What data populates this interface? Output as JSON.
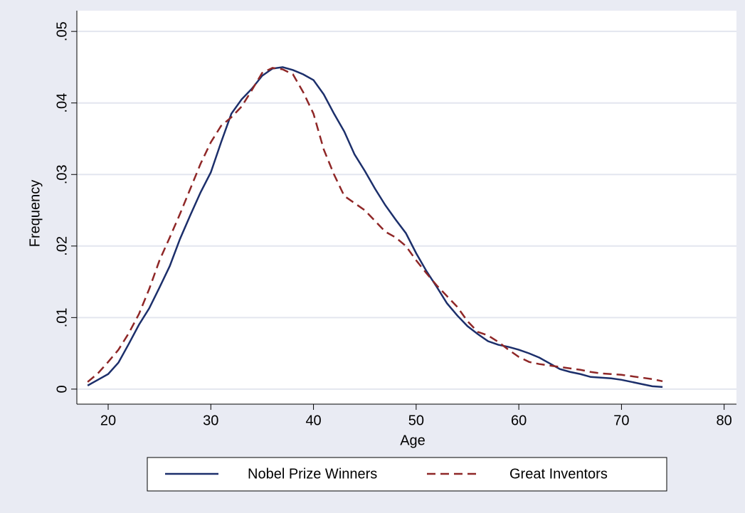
{
  "chart_data": {
    "type": "line",
    "x_label": "Age",
    "y_label": "Frequency",
    "x": [
      18,
      19,
      20,
      21,
      22,
      23,
      24,
      25,
      26,
      27,
      28,
      29,
      30,
      31,
      32,
      33,
      34,
      35,
      36,
      37,
      38,
      39,
      40,
      41,
      42,
      43,
      44,
      45,
      46,
      47,
      48,
      49,
      50,
      51,
      52,
      53,
      54,
      55,
      56,
      57,
      58,
      59,
      60,
      61,
      62,
      63,
      64,
      65,
      66,
      67,
      68,
      69,
      70,
      71,
      72,
      73,
      74
    ],
    "series": [
      {
        "name": "Nobel Prize Winners",
        "color": "#1c2f6b",
        "dash": "solid",
        "values": [
          0.0005,
          0.0013,
          0.0021,
          0.0037,
          0.0063,
          0.009,
          0.0113,
          0.0142,
          0.0172,
          0.021,
          0.0243,
          0.0275,
          0.0303,
          0.0345,
          0.0385,
          0.0405,
          0.042,
          0.0438,
          0.0448,
          0.045,
          0.0446,
          0.044,
          0.0432,
          0.0412,
          0.0385,
          0.036,
          0.0328,
          0.0305,
          0.028,
          0.0257,
          0.0237,
          0.0218,
          0.019,
          0.0165,
          0.0143,
          0.012,
          0.0103,
          0.0088,
          0.0077,
          0.0067,
          0.0062,
          0.0059,
          0.0055,
          0.005,
          0.0044,
          0.0036,
          0.0028,
          0.0024,
          0.0021,
          0.0017,
          0.0016,
          0.0015,
          0.0013,
          0.001,
          0.0007,
          0.0004,
          0.0003
        ]
      },
      {
        "name": "Great Inventors",
        "color": "#8f2727",
        "dash": "dashed",
        "values": [
          0.001,
          0.0022,
          0.0038,
          0.0055,
          0.0078,
          0.0105,
          0.014,
          0.018,
          0.0212,
          0.0245,
          0.028,
          0.0315,
          0.0345,
          0.0368,
          0.038,
          0.0395,
          0.0418,
          0.0442,
          0.0449,
          0.0447,
          0.044,
          0.0415,
          0.0385,
          0.0335,
          0.03,
          0.027,
          0.026,
          0.025,
          0.0235,
          0.022,
          0.0212,
          0.02,
          0.018,
          0.0162,
          0.0145,
          0.013,
          0.0115,
          0.0095,
          0.008,
          0.0075,
          0.0066,
          0.0055,
          0.0045,
          0.0038,
          0.0035,
          0.0033,
          0.0031,
          0.0029,
          0.0027,
          0.0024,
          0.0022,
          0.0021,
          0.002,
          0.0018,
          0.0016,
          0.0014,
          0.0011
        ]
      }
    ],
    "xlim": [
      16.95,
      81.2
    ],
    "xticks": [
      20,
      30,
      40,
      50,
      60,
      70,
      80
    ],
    "ylim": [
      -0.0021,
      0.0529
    ],
    "yticks": [
      0,
      {
        "value": 0.01,
        "label": ".01"
      },
      {
        "value": 0.02,
        "label": ".02"
      },
      {
        "value": 0.03,
        "label": ".03"
      },
      {
        "value": 0.04,
        "label": ".04"
      },
      {
        "value": 0.05,
        "label": ".05"
      }
    ],
    "grid": true,
    "legend": "bottom"
  }
}
